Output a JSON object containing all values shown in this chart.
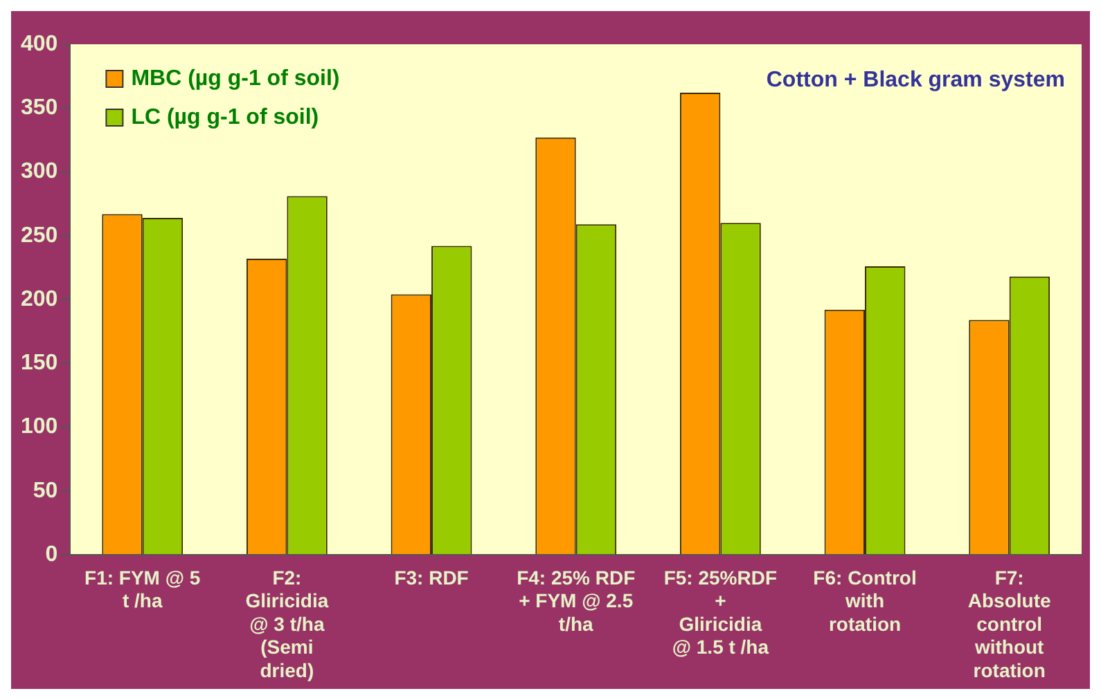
{
  "chart_data": {
    "type": "bar",
    "title": "Cotton + Black gram system",
    "categories": [
      "F1: FYM @ 5 t /ha",
      "F2: Gliricidia @ 3 t/ha (Semi dried)",
      "F3: RDF",
      "F4: 25% RDF + FYM @ 2.5 t/ha",
      "F5: 25%RDF + Gliricidia @ 1.5 t /ha",
      "F6: Control with rotation",
      "F7: Absolute control without rotation"
    ],
    "series": [
      {
        "name": "MBC (µg g-1 of soil)",
        "color": "#ff9900",
        "values": [
          267,
          232,
          204,
          327,
          362,
          192,
          184
        ]
      },
      {
        "name": "LC (µg g-1 of soil)",
        "color": "#99cc00",
        "values": [
          264,
          281,
          242,
          259,
          260,
          226,
          218
        ]
      }
    ],
    "ylim": [
      0,
      400
    ],
    "yticks": [
      0,
      50,
      100,
      150,
      200,
      250,
      300,
      350,
      400
    ],
    "grid": false,
    "legend": "top left"
  }
}
